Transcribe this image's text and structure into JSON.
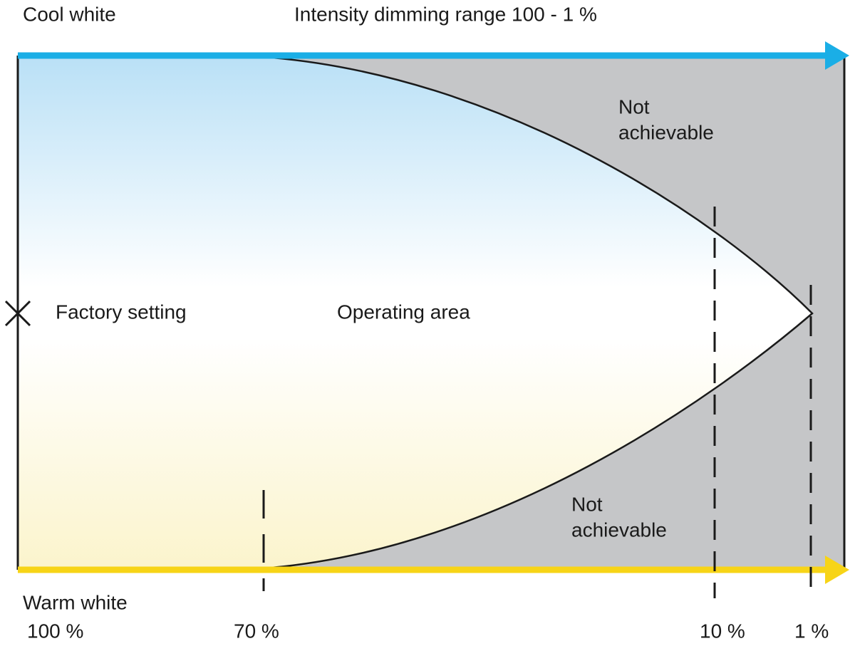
{
  "header": {
    "top_axis_label": "Cool white",
    "title": "Intensity dimming range 100 - 1 %"
  },
  "bottom_axis_label": "Warm white",
  "regions": {
    "upper_unachievable": [
      "Not",
      "achievable"
    ],
    "lower_unachievable": [
      "Not",
      "achievable"
    ],
    "operating_area": "Operating area",
    "factory_setting": "Factory setting"
  },
  "intensity_labels": [
    "100 %",
    "70 %",
    "10 %",
    "1 %"
  ]
}
